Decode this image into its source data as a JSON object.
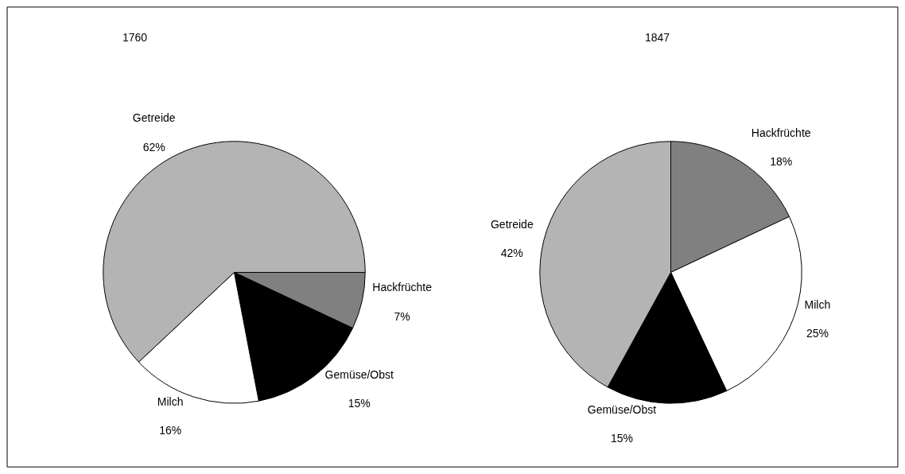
{
  "chart_data": [
    {
      "type": "pie",
      "title": "1760",
      "categories": [
        "Hackfrüchte",
        "Gemüse/Obst",
        "Milch",
        "Getreide"
      ],
      "values": [
        7,
        15,
        16,
        62
      ],
      "colors": [
        "#808080",
        "#000000",
        "#ffffff",
        "#b4b4b4"
      ],
      "value_labels": [
        "7%",
        "15%",
        "16%",
        "62%"
      ]
    },
    {
      "type": "pie",
      "title": "1847",
      "categories": [
        "Hackfrüchte",
        "Milch",
        "Gemüse/Obst",
        "Getreide"
      ],
      "values": [
        18,
        25,
        15,
        42
      ],
      "colors": [
        "#808080",
        "#ffffff",
        "#000000",
        "#b4b4b4"
      ],
      "value_labels": [
        "18%",
        "25%",
        "15%",
        "42%"
      ]
    }
  ]
}
